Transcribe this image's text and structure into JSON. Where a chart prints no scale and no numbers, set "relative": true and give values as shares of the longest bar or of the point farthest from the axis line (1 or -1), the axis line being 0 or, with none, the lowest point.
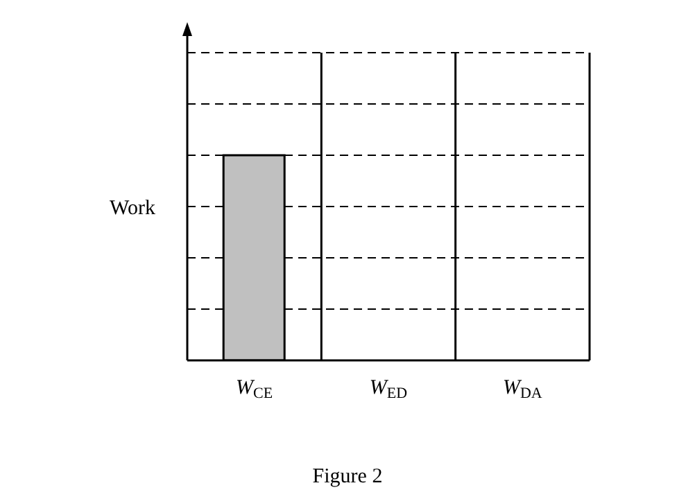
{
  "chart_data": {
    "type": "bar",
    "relative": true,
    "ylabel": "Work",
    "categories": [
      "W$_{CE}$",
      "W$_{ED}$",
      "W$_{DA}$"
    ],
    "values": [
      1,
      null,
      null
    ],
    "color": "#c0c0c0",
    "grid": true,
    "annotations": [
      "Figure 2"
    ]
  }
}
